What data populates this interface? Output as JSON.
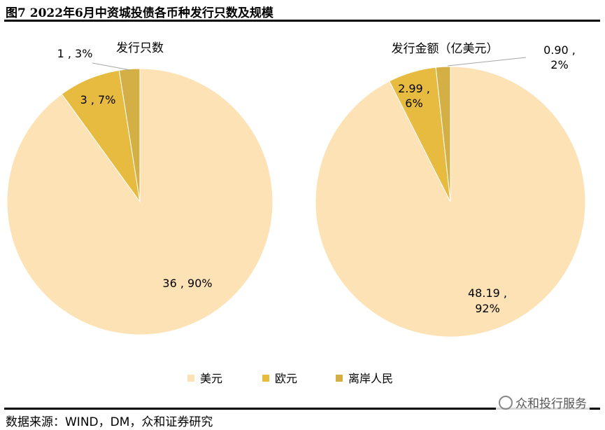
{
  "title": "图7 2022年6月中资城投债各币种发行只数及规模",
  "source": "数据来源：WIND，DM，众和证券研究",
  "watermark": "众和投行服务",
  "colors": {
    "usd": "#FCE2B4",
    "eur": "#E6BB3F",
    "offshore_rmb": "#D4AF45"
  },
  "legend": [
    "美元",
    "欧元",
    "离岸人民"
  ],
  "chart_data": [
    {
      "type": "pie",
      "title": "发行只数",
      "slices": [
        {
          "name": "美元",
          "value": 36,
          "percent": 90,
          "label": "36 , 90%"
        },
        {
          "name": "欧元",
          "value": 3,
          "percent": 7,
          "label": "3 , 7%"
        },
        {
          "name": "离岸人民",
          "value": 1,
          "percent": 3,
          "label": "1 , 3%"
        }
      ]
    },
    {
      "type": "pie",
      "title": "发行金额（亿美元）",
      "slices": [
        {
          "name": "美元",
          "value": 48.19,
          "percent": 92,
          "label": [
            "48.19 ,",
            "92%"
          ]
        },
        {
          "name": "欧元",
          "value": 2.99,
          "percent": 6,
          "label": [
            "2.99 ,",
            "6%"
          ]
        },
        {
          "name": "离岸人民",
          "value": 0.9,
          "percent": 2,
          "label": [
            "0.90 ,",
            "2%"
          ]
        }
      ]
    }
  ]
}
